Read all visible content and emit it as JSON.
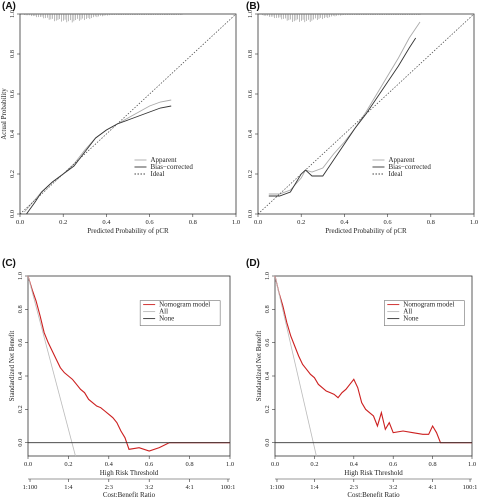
{
  "chart_data": [
    {
      "panel": "(A)",
      "type": "line",
      "xlabel": "Predicted Probability of pCR",
      "ylabel": "Actual Probability",
      "xlim": [
        0,
        1
      ],
      "ylim": [
        0,
        1
      ],
      "x_ticks": [
        "0.0",
        "0.2",
        "0.4",
        "0.6",
        "0.8",
        "1.0"
      ],
      "y_ticks": [
        "0.0",
        "0.2",
        "0.4",
        "0.6",
        "0.8",
        "1.0"
      ],
      "legend": {
        "position": "right",
        "entries": [
          "Apparent",
          "Bias−corrected",
          "Ideal"
        ]
      },
      "rug": "top",
      "series": [
        {
          "name": "Apparent",
          "style": "solid-light",
          "x": [
            0.02,
            0.06,
            0.1,
            0.15,
            0.2,
            0.25,
            0.3,
            0.35,
            0.4,
            0.45,
            0.5,
            0.55,
            0.6,
            0.65,
            0.7
          ],
          "y": [
            0.01,
            0.06,
            0.11,
            0.16,
            0.2,
            0.25,
            0.32,
            0.38,
            0.42,
            0.45,
            0.48,
            0.51,
            0.54,
            0.56,
            0.57
          ]
        },
        {
          "name": "Bias−corrected",
          "style": "solid-dark",
          "x": [
            0.03,
            0.07,
            0.1,
            0.15,
            0.2,
            0.25,
            0.3,
            0.35,
            0.4,
            0.45,
            0.5,
            0.55,
            0.6,
            0.65,
            0.7
          ],
          "y": [
            0.0,
            0.06,
            0.11,
            0.16,
            0.2,
            0.24,
            0.31,
            0.38,
            0.42,
            0.45,
            0.47,
            0.49,
            0.51,
            0.53,
            0.54
          ]
        },
        {
          "name": "Ideal",
          "style": "dotted",
          "x": [
            0,
            1
          ],
          "y": [
            0,
            1
          ]
        }
      ]
    },
    {
      "panel": "(B)",
      "type": "line",
      "xlabel": "Predicted Probability of pCR",
      "ylabel": "",
      "xlim": [
        0,
        1
      ],
      "ylim": [
        0,
        1
      ],
      "x_ticks": [
        "0.0",
        "0.2",
        "0.4",
        "0.6",
        "0.8",
        "1.0"
      ],
      "y_ticks": [
        "0.0",
        "0.2",
        "0.4",
        "0.6",
        "0.8",
        "1.0"
      ],
      "legend": {
        "position": "right",
        "entries": [
          "Apparent",
          "Bias−corrected",
          "Ideal"
        ]
      },
      "rug": "top",
      "series": [
        {
          "name": "Apparent",
          "style": "solid-light",
          "x": [
            0.05,
            0.1,
            0.15,
            0.2,
            0.22,
            0.25,
            0.3,
            0.35,
            0.4,
            0.45,
            0.5,
            0.55,
            0.6,
            0.65,
            0.7,
            0.75
          ],
          "y": [
            0.1,
            0.1,
            0.12,
            0.18,
            0.22,
            0.21,
            0.23,
            0.3,
            0.36,
            0.43,
            0.51,
            0.6,
            0.69,
            0.78,
            0.88,
            0.96
          ]
        },
        {
          "name": "Bias−corrected",
          "style": "solid-dark",
          "x": [
            0.05,
            0.1,
            0.15,
            0.2,
            0.22,
            0.25,
            0.3,
            0.35,
            0.4,
            0.45,
            0.5,
            0.55,
            0.6,
            0.65,
            0.7,
            0.73
          ],
          "y": [
            0.09,
            0.09,
            0.11,
            0.2,
            0.22,
            0.19,
            0.19,
            0.27,
            0.35,
            0.43,
            0.5,
            0.58,
            0.66,
            0.74,
            0.83,
            0.88
          ]
        },
        {
          "name": "Ideal",
          "style": "dotted",
          "x": [
            0,
            1
          ],
          "y": [
            0,
            1
          ]
        }
      ]
    },
    {
      "panel": "(C)",
      "type": "line",
      "xlabel": "High Risk Threshold",
      "ylabel": "Standardized Net Benefit",
      "xlabel2": "Cost:Benefit Ratio",
      "xlim": [
        0,
        1
      ],
      "ylim": [
        -0.08,
        1
      ],
      "x_ticks": [
        "0.0",
        "0.2",
        "0.4",
        "0.6",
        "0.8",
        "1.0"
      ],
      "x2_ticks": [
        "1:100",
        "1:4",
        "2:3",
        "3:2",
        "4:1",
        "100:1"
      ],
      "y_ticks": [
        "0.0",
        "0.2",
        "0.4",
        "0.6",
        "0.8",
        "1.0"
      ],
      "legend": {
        "position": "top-right",
        "entries": [
          "Nomogram model",
          "All",
          "None"
        ]
      },
      "series": [
        {
          "name": "Nomogram model",
          "color": "#cc1f1f",
          "x": [
            0,
            0.02,
            0.04,
            0.06,
            0.08,
            0.1,
            0.12,
            0.14,
            0.16,
            0.18,
            0.2,
            0.22,
            0.24,
            0.26,
            0.28,
            0.3,
            0.32,
            0.34,
            0.36,
            0.38,
            0.4,
            0.42,
            0.44,
            0.46,
            0.48,
            0.5,
            0.55,
            0.6,
            0.65,
            0.7,
            0.75,
            1.0
          ],
          "y": [
            1.0,
            0.92,
            0.85,
            0.76,
            0.66,
            0.6,
            0.55,
            0.5,
            0.45,
            0.42,
            0.4,
            0.38,
            0.35,
            0.32,
            0.3,
            0.26,
            0.24,
            0.22,
            0.21,
            0.19,
            0.17,
            0.15,
            0.12,
            0.07,
            0.03,
            -0.04,
            -0.03,
            -0.05,
            -0.03,
            0.0,
            0.0,
            0.0
          ]
        },
        {
          "name": "All",
          "color": "#bbbbbb",
          "x": [
            0,
            0.235
          ],
          "y": [
            1.0,
            -0.08
          ]
        },
        {
          "name": "None",
          "color": "#333333",
          "x": [
            0,
            1
          ],
          "y": [
            0,
            0
          ]
        }
      ]
    },
    {
      "panel": "(D)",
      "type": "line",
      "xlabel": "High Risk Threshold",
      "ylabel": "Standardized Net Benefit",
      "xlabel2": "Cost:Benefit Ratio",
      "xlim": [
        0,
        1
      ],
      "ylim": [
        -0.08,
        1
      ],
      "x_ticks": [
        "0.0",
        "0.2",
        "0.4",
        "0.6",
        "0.8",
        "1.0"
      ],
      "x2_ticks": [
        "1:100",
        "1:4",
        "2:3",
        "3:2",
        "4:1",
        "100:1"
      ],
      "y_ticks": [
        "0.0",
        "0.2",
        "0.4",
        "0.6",
        "0.8",
        "1.0"
      ],
      "legend": {
        "position": "top-right",
        "entries": [
          "Nomogram model",
          "All",
          "None"
        ]
      },
      "series": [
        {
          "name": "Nomogram model",
          "color": "#cc1f1f",
          "x": [
            0,
            0.02,
            0.04,
            0.06,
            0.08,
            0.1,
            0.12,
            0.14,
            0.16,
            0.18,
            0.2,
            0.22,
            0.24,
            0.26,
            0.28,
            0.3,
            0.32,
            0.34,
            0.36,
            0.38,
            0.4,
            0.42,
            0.44,
            0.46,
            0.48,
            0.5,
            0.52,
            0.54,
            0.56,
            0.58,
            0.6,
            0.65,
            0.7,
            0.75,
            0.78,
            0.8,
            0.82,
            0.84,
            1.0
          ],
          "y": [
            1.0,
            0.9,
            0.82,
            0.72,
            0.64,
            0.58,
            0.52,
            0.47,
            0.44,
            0.41,
            0.39,
            0.35,
            0.33,
            0.31,
            0.3,
            0.29,
            0.27,
            0.3,
            0.32,
            0.35,
            0.38,
            0.33,
            0.24,
            0.2,
            0.18,
            0.16,
            0.1,
            0.18,
            0.08,
            0.12,
            0.06,
            0.07,
            0.06,
            0.05,
            0.05,
            0.1,
            0.06,
            0.0,
            0.0
          ]
        },
        {
          "name": "All",
          "color": "#bbbbbb",
          "x": [
            0,
            0.21
          ],
          "y": [
            1.0,
            -0.08
          ]
        },
        {
          "name": "None",
          "color": "#333333",
          "x": [
            0,
            1
          ],
          "y": [
            0,
            0
          ]
        }
      ]
    }
  ]
}
